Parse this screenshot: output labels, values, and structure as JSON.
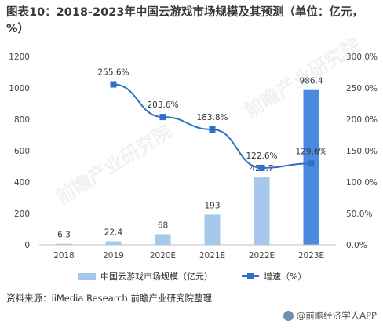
{
  "title": "图表10：2018-2023年中国云游戏市场规模及其预测（单位：亿元，%）",
  "chart_data": {
    "type": "bar",
    "categories": [
      "2018",
      "2019",
      "2020E",
      "2021E",
      "2022E",
      "2023E"
    ],
    "series": [
      {
        "name": "中国云游戏市场规模（亿元）",
        "type": "bar",
        "axis": "left",
        "values": [
          6.3,
          22.4,
          68,
          193,
          429.7,
          986.4
        ],
        "labels": [
          "6.3",
          "22.4",
          "68",
          "193",
          "429.7",
          "986.4"
        ],
        "color": "#a7c8ee",
        "color_last": "#4a8be0"
      },
      {
        "name": "增速（%）",
        "type": "line",
        "axis": "right",
        "values": [
          null,
          255.6,
          203.6,
          183.8,
          122.6,
          129.6
        ],
        "labels": [
          "",
          "255.6%",
          "203.6%",
          "183.8%",
          "122.6%",
          "129.6%"
        ],
        "color": "#2f6fc9"
      }
    ],
    "y_left": {
      "ylim": [
        0,
        1200
      ],
      "ticks": [
        0,
        200,
        400,
        600,
        800,
        1000,
        1200
      ],
      "tick_labels": [
        "0",
        "200",
        "400",
        "600",
        "800",
        "1000",
        "1200"
      ]
    },
    "y_right": {
      "ylim": [
        0,
        300
      ],
      "ticks": [
        0,
        50,
        100,
        150,
        200,
        250,
        300
      ],
      "tick_labels": [
        "0.0%",
        "50.0%",
        "100.0%",
        "150.0%",
        "200.0%",
        "250.0%",
        "300.0%"
      ]
    },
    "xlabel": "",
    "ylabel": "",
    "grid": false,
    "legend_position": "bottom"
  },
  "legend": {
    "bar_label": "中国云游戏市场规模（亿元）",
    "line_label": "增速（%）"
  },
  "source": "资料来源：iiMedia Research  前瞻产业研究院整理",
  "brand": "@前瞻经济学人APP",
  "watermark": "前瞻产业研究院"
}
